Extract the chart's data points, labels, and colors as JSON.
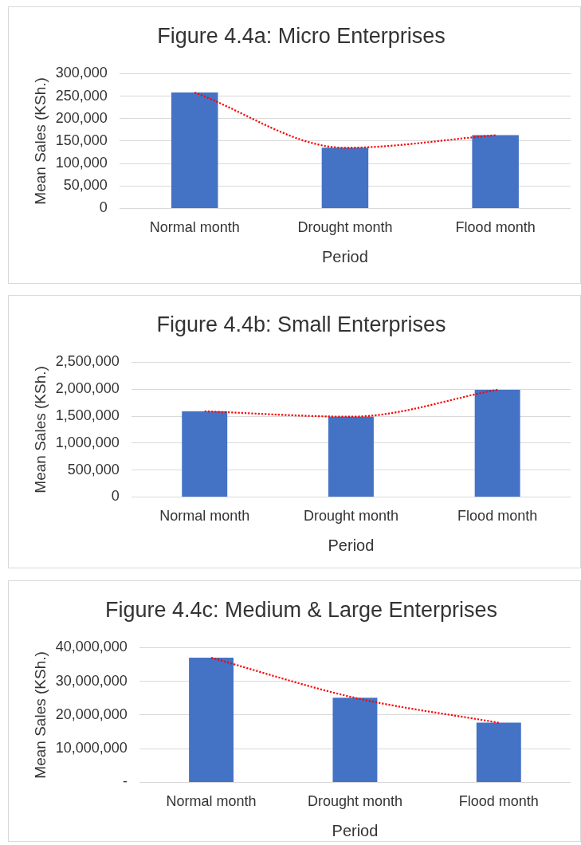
{
  "chart_data": [
    {
      "type": "bar",
      "title": "Figure 4.4a: Micro Enterprises",
      "xlabel": "Period",
      "ylabel": "Mean Sales (KSh.)",
      "categories": [
        "Normal month",
        "Drought month",
        "Flood month"
      ],
      "series": [
        {
          "color": "#4472c4",
          "values": [
            258000,
            135000,
            163000
          ]
        },
        {
          "type": "line",
          "color": "#ff0000",
          "values": [
            258000,
            135000,
            163000
          ],
          "line_style": "dotted",
          "marker": "none"
        }
      ],
      "ylim": [
        0,
        300000
      ],
      "yticks": [
        {
          "value": 0,
          "label": "0"
        },
        {
          "value": 50000,
          "label": "50,000"
        },
        {
          "value": 100000,
          "label": "100,000"
        },
        {
          "value": 150000,
          "label": "150,000"
        },
        {
          "value": 200000,
          "label": "200,000"
        },
        {
          "value": 250000,
          "label": "250,000"
        },
        {
          "value": 300000,
          "label": "300,000"
        }
      ],
      "grid": "y"
    },
    {
      "type": "bar",
      "title": "Figure 4.4b: Small Enterprises",
      "xlabel": "Period",
      "ylabel": "Mean Sales (KSh.)",
      "categories": [
        "Normal month",
        "Drought month",
        "Flood month"
      ],
      "series": [
        {
          "color": "#4472c4",
          "values": [
            1590000,
            1490000,
            1990000
          ]
        },
        {
          "type": "line",
          "color": "#ff0000",
          "values": [
            1590000,
            1490000,
            1990000
          ],
          "line_style": "dotted",
          "marker": "none"
        }
      ],
      "ylim": [
        0,
        2500000
      ],
      "yticks": [
        {
          "value": 0,
          "label": "0"
        },
        {
          "value": 500000,
          "label": "500,000"
        },
        {
          "value": 1000000,
          "label": "1,000,000"
        },
        {
          "value": 1500000,
          "label": "1,500,000"
        },
        {
          "value": 2000000,
          "label": "2,000,000"
        },
        {
          "value": 2500000,
          "label": "2,500,000"
        }
      ],
      "grid": "y"
    },
    {
      "type": "bar",
      "title": "Figure 4.4c: Medium & Large Enterprises",
      "xlabel": "Period",
      "ylabel": "Mean Sales (KSh.)",
      "categories": [
        "Normal month",
        "Drought month",
        "Flood month"
      ],
      "series": [
        {
          "color": "#4472c4",
          "values": [
            37000000,
            25100000,
            17700000
          ]
        },
        {
          "type": "line",
          "color": "#ff0000",
          "values": [
            37000000,
            25100000,
            17700000
          ],
          "line_style": "dotted",
          "marker": "none"
        }
      ],
      "ylim": [
        0,
        40000000
      ],
      "yticks": [
        {
          "value": 0,
          "label": "-"
        },
        {
          "value": 10000000,
          "label": "10,000,000"
        },
        {
          "value": 20000000,
          "label": "20,000,000"
        },
        {
          "value": 30000000,
          "label": "30,000,000"
        },
        {
          "value": 40000000,
          "label": "40,000,000"
        }
      ],
      "grid": "y"
    }
  ]
}
